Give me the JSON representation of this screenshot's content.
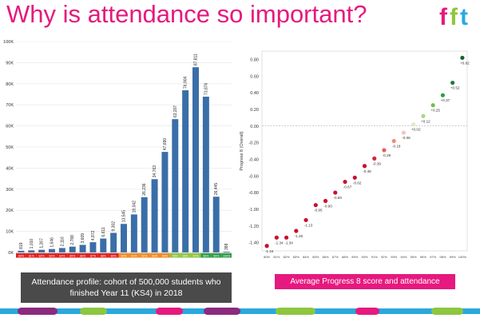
{
  "slide": {
    "title": "Why is attendance so important?",
    "logo_text": "fft",
    "left_caption_line1": "Attendance profile: cohort of 500,000 students who",
    "left_caption_line2": "finished Year 11 (KS4) in 2018",
    "right_caption": "Average Progress 8 score and attendance"
  },
  "colors": {
    "title": "#e6197e",
    "bar": "#3a6ea8",
    "band_red": "#e02020",
    "band_orange": "#f08a24",
    "band_yellowgreen": "#8dc63f",
    "band_green": "#2e9e45",
    "caption_dark": "#4a4a4a",
    "caption_pink": "#e6197e"
  },
  "chart_data": [
    {
      "type": "bar",
      "categories": [
        "80%",
        "81%",
        "82%",
        "83%",
        "84%",
        "85%",
        "86%",
        "87%",
        "88%",
        "89%",
        "90%",
        "91%",
        "92%",
        "93%",
        "94%",
        "95%",
        "96%",
        "97%",
        "98%",
        "99%",
        "100%"
      ],
      "values": [
        819,
        1010,
        1267,
        1646,
        2116,
        2788,
        3609,
        4872,
        6611,
        9302,
        13545,
        18042,
        26236,
        34763,
        47690,
        63207,
        76904,
        87811,
        73876,
        26445,
        388
      ],
      "value_labels": [
        "819",
        "1,010",
        "1,267",
        "1,646",
        "2,116",
        "2,788",
        "3,609",
        "4,872",
        "6,611",
        "9,302",
        "13,545",
        "18,042",
        "26,236",
        "34,763",
        "47,690",
        "63,207",
        "76,904",
        "87,811",
        "73,876",
        "26,445",
        "388"
      ],
      "yticks": [
        "0K",
        "10K",
        "20K",
        "30K",
        "40K",
        "50K",
        "60K",
        "70K",
        "80K",
        "90K",
        "100K"
      ],
      "ylim": [
        0,
        100000
      ],
      "band_colors": [
        "band_red",
        "band_red",
        "band_red",
        "band_red",
        "band_red",
        "band_red",
        "band_red",
        "band_red",
        "band_red",
        "band_red",
        "band_orange",
        "band_orange",
        "band_orange",
        "band_orange",
        "band_orange",
        "band_yellowgreen",
        "band_yellowgreen",
        "band_yellowgreen",
        "band_green",
        "band_green",
        "band_green"
      ]
    },
    {
      "type": "scatter",
      "x": [
        "80%",
        "81%",
        "82%",
        "83%",
        "84%",
        "85%",
        "86%",
        "87%",
        "88%",
        "89%",
        "90%",
        "91%",
        "92%",
        "93%",
        "94%",
        "95%",
        "96%",
        "97%",
        "98%",
        "99%",
        "100%"
      ],
      "values": [
        -1.44,
        -1.34,
        -1.34,
        -1.26,
        -1.13,
        -0.95,
        -0.9,
        -0.8,
        -0.67,
        -0.62,
        -0.48,
        -0.39,
        -0.29,
        -0.18,
        -0.08,
        0.02,
        0.12,
        0.25,
        0.37,
        0.52,
        0.82
      ],
      "value_labels": [
        "-1.44",
        "-1.34",
        "-1.34",
        "-1.26",
        "-1.13",
        "-0.95",
        "-0.90",
        "-0.80",
        "-0.67",
        "-0.62",
        "-0.48",
        "-0.39",
        "-0.29",
        "-0.18",
        "-0.08",
        "+0.02",
        "+0.12",
        "+0.25",
        "+0.37",
        "+0.52",
        "+0.82"
      ],
      "ylabel": "Progress 8 (Overall)",
      "yticks": [
        "-1.40",
        "-1.20",
        "-1.00",
        "-0.80",
        "-0.60",
        "-0.40",
        "-0.20",
        "0.00",
        "0.20",
        "0.40",
        "0.60",
        "0.80"
      ],
      "ylim": [
        -1.5,
        0.9
      ],
      "point_colors": [
        "#c8102e",
        "#c8102e",
        "#c8102e",
        "#c8102e",
        "#c8102e",
        "#c8102e",
        "#c8102e",
        "#c8102e",
        "#c8102e",
        "#c8102e",
        "#c8102e",
        "#d7263d",
        "#ee5a5a",
        "#f28b82",
        "#f6c3c3",
        "#d9ecc4",
        "#a8d88a",
        "#6cc04a",
        "#2e9e45",
        "#1f7a3a",
        "#16602e"
      ]
    }
  ]
}
